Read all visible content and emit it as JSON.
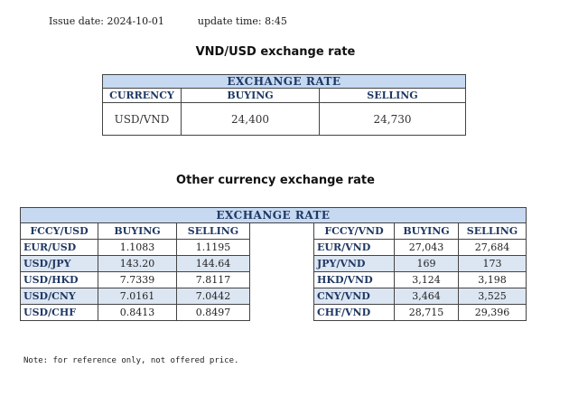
{
  "header": {
    "issue_date_label": "Issue date:",
    "issue_date": "2024-10-01",
    "update_time_label": "update time:",
    "update_time": "8:45"
  },
  "vnd_usd": {
    "title": "VND/USD exchange rate",
    "table_title": "EXCHANGE RATE",
    "columns": [
      "CURRENCY",
      "BUYING",
      "SELLING"
    ],
    "row": {
      "currency": "USD/VND",
      "buying": "24,400",
      "selling": "24,730"
    }
  },
  "other": {
    "title": "Other currency exchange rate",
    "table_title": "EXCHANGE  RATE",
    "left_columns": [
      "FCCY/USD",
      "BUYING",
      "SELLING"
    ],
    "right_columns": [
      "FCCY/VND",
      "BUYING",
      "SELLING"
    ],
    "rows": [
      {
        "l_code": "EUR/USD",
        "l_buy": "1.1083",
        "l_sell": "1.1195",
        "r_code": "EUR/VND",
        "r_buy": "27,043",
        "r_sell": "27,684"
      },
      {
        "l_code": "USD/JPY",
        "l_buy": "143.20",
        "l_sell": "144.64",
        "r_code": "JPY/VND",
        "r_buy": "169",
        "r_sell": "173"
      },
      {
        "l_code": "USD/HKD",
        "l_buy": "7.7339",
        "l_sell": "7.8117",
        "r_code": "HKD/VND",
        "r_buy": "3,124",
        "r_sell": "3,198"
      },
      {
        "l_code": "USD/CNY",
        "l_buy": "7.0161",
        "l_sell": "7.0442",
        "r_code": "CNY/VND",
        "r_buy": "3,464",
        "r_sell": "3,525"
      },
      {
        "l_code": "USD/CHF",
        "l_buy": "0.8413",
        "l_sell": "0.8497",
        "r_code": "CHF/VND",
        "r_buy": "28,715",
        "r_sell": "29,396"
      }
    ]
  },
  "note": "Note: for reference only, not offered price.",
  "colors": {
    "header_bg": "#c6d9f1",
    "row_alt_bg": "#dce6f2",
    "header_text": "#1f3864"
  }
}
